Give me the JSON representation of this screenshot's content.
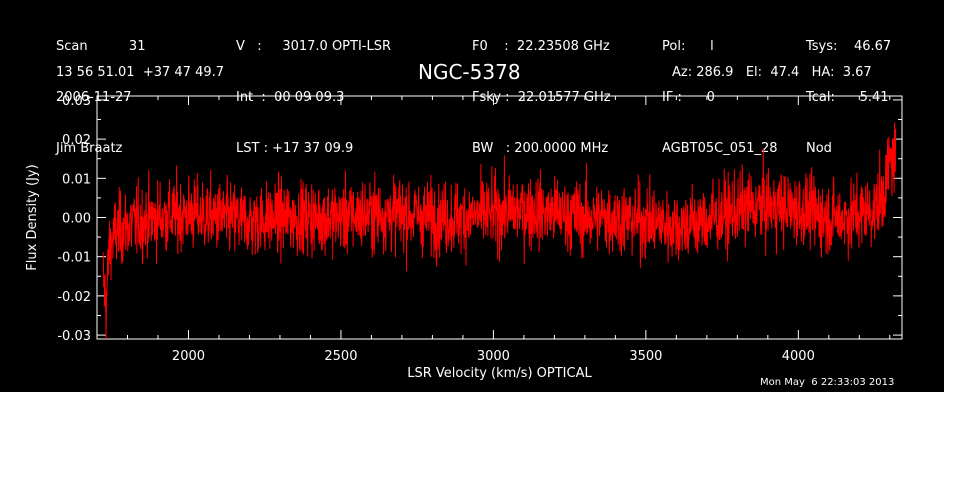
{
  "header": {
    "col1": [
      "Scan          31",
      "2006-11-27",
      "Jim Braatz"
    ],
    "col2": [
      "V   :     3017.0 OPTI-LSR",
      "Int  :  00 09 09.3",
      "LST : +17 37 09.9"
    ],
    "col3": [
      "F0    :  22.23508 GHz",
      "Fsky :  22.01577 GHz",
      "BW   : 200.0000 MHz"
    ],
    "col4": [
      "Pol:      l",
      "IF :      0",
      "AGBT05C_051_28"
    ],
    "col5": [
      "Tsys:    46.67",
      "Tcal:      5.41",
      "Nod"
    ],
    "coordinates": "13 56 51.01  +37 47 49.7",
    "source": "NGC-5378",
    "pointing": "Az: 286.9   El:  47.4   HA:  3.67"
  },
  "timestamp": "Mon May  6 22:33:03 2013",
  "chart_data": {
    "type": "line",
    "xlabel": "LSR Velocity (km/s) OPTICAL",
    "ylabel": "Flux Density (Jy)",
    "xlim": [
      1700,
      4340
    ],
    "ylim": [
      -0.031,
      0.031
    ],
    "xticks": [
      2000,
      2500,
      3000,
      3500,
      4000
    ],
    "xtick_labels": [
      "2000",
      "2500",
      "3000",
      "3500",
      "4000"
    ],
    "yticks": [
      -0.03,
      -0.02,
      -0.01,
      0.0,
      0.01,
      0.02,
      0.03
    ],
    "ytick_labels": [
      "-0.03",
      "-0.02",
      "-0.01",
      "0.00",
      "0.01",
      "0.02",
      "0.03"
    ],
    "series": [
      {
        "color": "#ff0000",
        "x": [
          1720,
          1730,
          1740,
          1760,
          1800,
          1900,
          2000,
          2100,
          2200,
          2300,
          2400,
          2500,
          2600,
          2700,
          2800,
          2900,
          3000,
          3100,
          3200,
          3300,
          3400,
          3500,
          3600,
          3700,
          3800,
          3900,
          4000,
          4100,
          4150,
          4200,
          4250,
          4280,
          4300,
          4320
        ],
        "y": [
          -0.015,
          -0.022,
          -0.008,
          -0.004,
          -0.002,
          0.0,
          0.001,
          0.0,
          -0.001,
          0.0,
          0.0,
          0.0,
          0.001,
          0.001,
          0.0,
          0.0,
          0.001,
          0.002,
          0.001,
          0.0,
          0.0,
          -0.001,
          -0.002,
          -0.001,
          0.002,
          0.003,
          0.002,
          0.0,
          0.0,
          0.001,
          0.002,
          0.006,
          0.014,
          0.016
        ]
      }
    ],
    "noise_sigma": 0.0065
  }
}
